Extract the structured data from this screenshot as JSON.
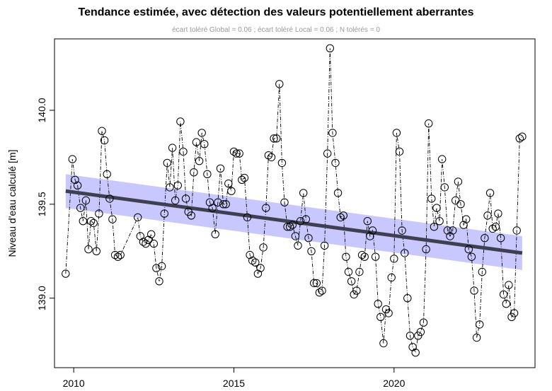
{
  "chart_data": {
    "type": "scatter",
    "title": "Tendance estimée, avec détection des valeurs potentiellement aberrantes",
    "subtitle": "écart toléré Global = 0.06 ; écart toléré Local = 0.06 ; N tolérés = 0",
    "xlabel": "",
    "ylabel": "Niveau d'eau calculé [m]",
    "xlim": [
      2009.4,
      2024.4
    ],
    "ylim": [
      138.63,
      140.38
    ],
    "x_ticks": [
      2010,
      2015,
      2020
    ],
    "y_ticks": [
      139.0,
      139.5,
      140.0
    ],
    "x_tick_labels": [
      "2010",
      "2015",
      "2020"
    ],
    "y_tick_labels": [
      "139.0",
      "139.5",
      "140.0"
    ],
    "grid": false,
    "legend": "none",
    "colors": {
      "points": "#000000",
      "trend": "#3f3f52",
      "band": "#c8c8ff"
    },
    "trend": {
      "x": [
        2009.75,
        2024.0
      ],
      "y": [
        139.57,
        139.24
      ]
    },
    "band": {
      "x": [
        2009.75,
        2024.0
      ],
      "upper": [
        139.66,
        139.33
      ],
      "lower": [
        139.48,
        139.15
      ]
    },
    "points": {
      "x": [
        2009.75,
        2009.96,
        2010.04,
        2010.12,
        2010.21,
        2010.29,
        2010.38,
        2010.46,
        2010.54,
        2010.62,
        2010.71,
        2010.79,
        2010.88,
        2010.96,
        2011.04,
        2011.12,
        2011.21,
        2011.29,
        2011.38,
        2011.46,
        2012.0,
        2012.08,
        2012.17,
        2012.25,
        2012.33,
        2012.42,
        2012.5,
        2012.58,
        2012.67,
        2012.75,
        2012.83,
        2012.92,
        2013.0,
        2013.08,
        2013.17,
        2013.25,
        2013.33,
        2013.42,
        2013.5,
        2013.58,
        2013.67,
        2013.75,
        2013.83,
        2013.92,
        2014.0,
        2014.08,
        2014.17,
        2014.25,
        2014.33,
        2014.42,
        2014.5,
        2014.58,
        2014.67,
        2014.75,
        2014.83,
        2014.92,
        2015.0,
        2015.08,
        2015.17,
        2015.25,
        2015.33,
        2015.42,
        2015.5,
        2015.58,
        2015.67,
        2015.75,
        2015.83,
        2015.92,
        2016.0,
        2016.08,
        2016.17,
        2016.25,
        2016.33,
        2016.42,
        2016.5,
        2016.58,
        2016.67,
        2016.75,
        2016.83,
        2016.92,
        2017.0,
        2017.08,
        2017.17,
        2017.25,
        2017.33,
        2017.42,
        2017.5,
        2017.58,
        2017.67,
        2017.75,
        2017.83,
        2017.92,
        2018.0,
        2018.08,
        2018.17,
        2018.25,
        2018.33,
        2018.42,
        2018.5,
        2018.58,
        2018.67,
        2018.75,
        2018.83,
        2018.92,
        2019.0,
        2019.08,
        2019.17,
        2019.25,
        2019.33,
        2019.42,
        2019.5,
        2019.58,
        2019.67,
        2019.75,
        2019.83,
        2019.92,
        2020.0,
        2020.08,
        2020.17,
        2020.25,
        2020.33,
        2020.42,
        2020.5,
        2020.58,
        2020.67,
        2020.75,
        2020.83,
        2020.92,
        2021.0,
        2021.08,
        2021.17,
        2021.25,
        2021.33,
        2021.42,
        2021.5,
        2021.58,
        2021.67,
        2021.75,
        2021.83,
        2021.92,
        2022.0,
        2022.08,
        2022.17,
        2022.25,
        2022.33,
        2022.42,
        2022.5,
        2022.58,
        2022.67,
        2022.75,
        2022.83,
        2022.92,
        2023.0,
        2023.08,
        2023.17,
        2023.25,
        2023.33,
        2023.42,
        2023.5,
        2023.58,
        2023.67,
        2023.75,
        2023.83,
        2023.92,
        2024.0
      ],
      "y": [
        139.13,
        139.74,
        139.63,
        139.6,
        139.48,
        139.41,
        139.52,
        139.26,
        139.41,
        139.4,
        139.25,
        139.45,
        139.89,
        139.84,
        139.66,
        139.53,
        139.42,
        139.23,
        139.22,
        139.23,
        139.43,
        139.33,
        139.3,
        139.29,
        139.31,
        139.34,
        139.29,
        139.16,
        139.09,
        139.17,
        139.45,
        139.72,
        139.59,
        139.8,
        139.52,
        139.6,
        139.94,
        139.78,
        139.53,
        139.46,
        139.44,
        139.67,
        139.83,
        139.73,
        139.88,
        139.82,
        139.66,
        139.51,
        139.48,
        139.34,
        139.51,
        139.69,
        139.5,
        139.5,
        139.61,
        139.57,
        139.78,
        139.77,
        139.77,
        139.63,
        139.64,
        139.43,
        139.23,
        139.2,
        139.19,
        139.13,
        139.16,
        139.27,
        139.48,
        139.76,
        139.75,
        139.85,
        139.85,
        140.14,
        139.72,
        139.51,
        139.38,
        139.38,
        139.39,
        139.33,
        139.28,
        139.41,
        139.56,
        139.42,
        139.32,
        139.25,
        139.08,
        139.08,
        139.03,
        139.04,
        139.28,
        139.77,
        140.33,
        139.88,
        139.72,
        139.56,
        139.43,
        139.44,
        139.22,
        139.14,
        139.09,
        139.02,
        139.04,
        139.14,
        139.23,
        139.22,
        139.41,
        139.33,
        139.36,
        139.22,
        138.97,
        138.9,
        138.76,
        138.94,
        138.92,
        139.11,
        139.21,
        139.88,
        139.78,
        139.36,
        139.24,
        139.0,
        138.8,
        138.74,
        138.71,
        138.8,
        138.82,
        138.87,
        139.26,
        139.93,
        139.53,
        139.38,
        139.48,
        139.41,
        139.74,
        139.59,
        139.36,
        139.33,
        139.36,
        139.52,
        139.62,
        139.5,
        139.39,
        139.42,
        139.26,
        139.22,
        139.04,
        138.79,
        138.86,
        139.14,
        139.32,
        139.44,
        139.56,
        139.37,
        139.38,
        139.45,
        139.32,
        139.02,
        138.97,
        139.07,
        138.9,
        138.92,
        139.36,
        139.85,
        139.86
      ]
    }
  }
}
